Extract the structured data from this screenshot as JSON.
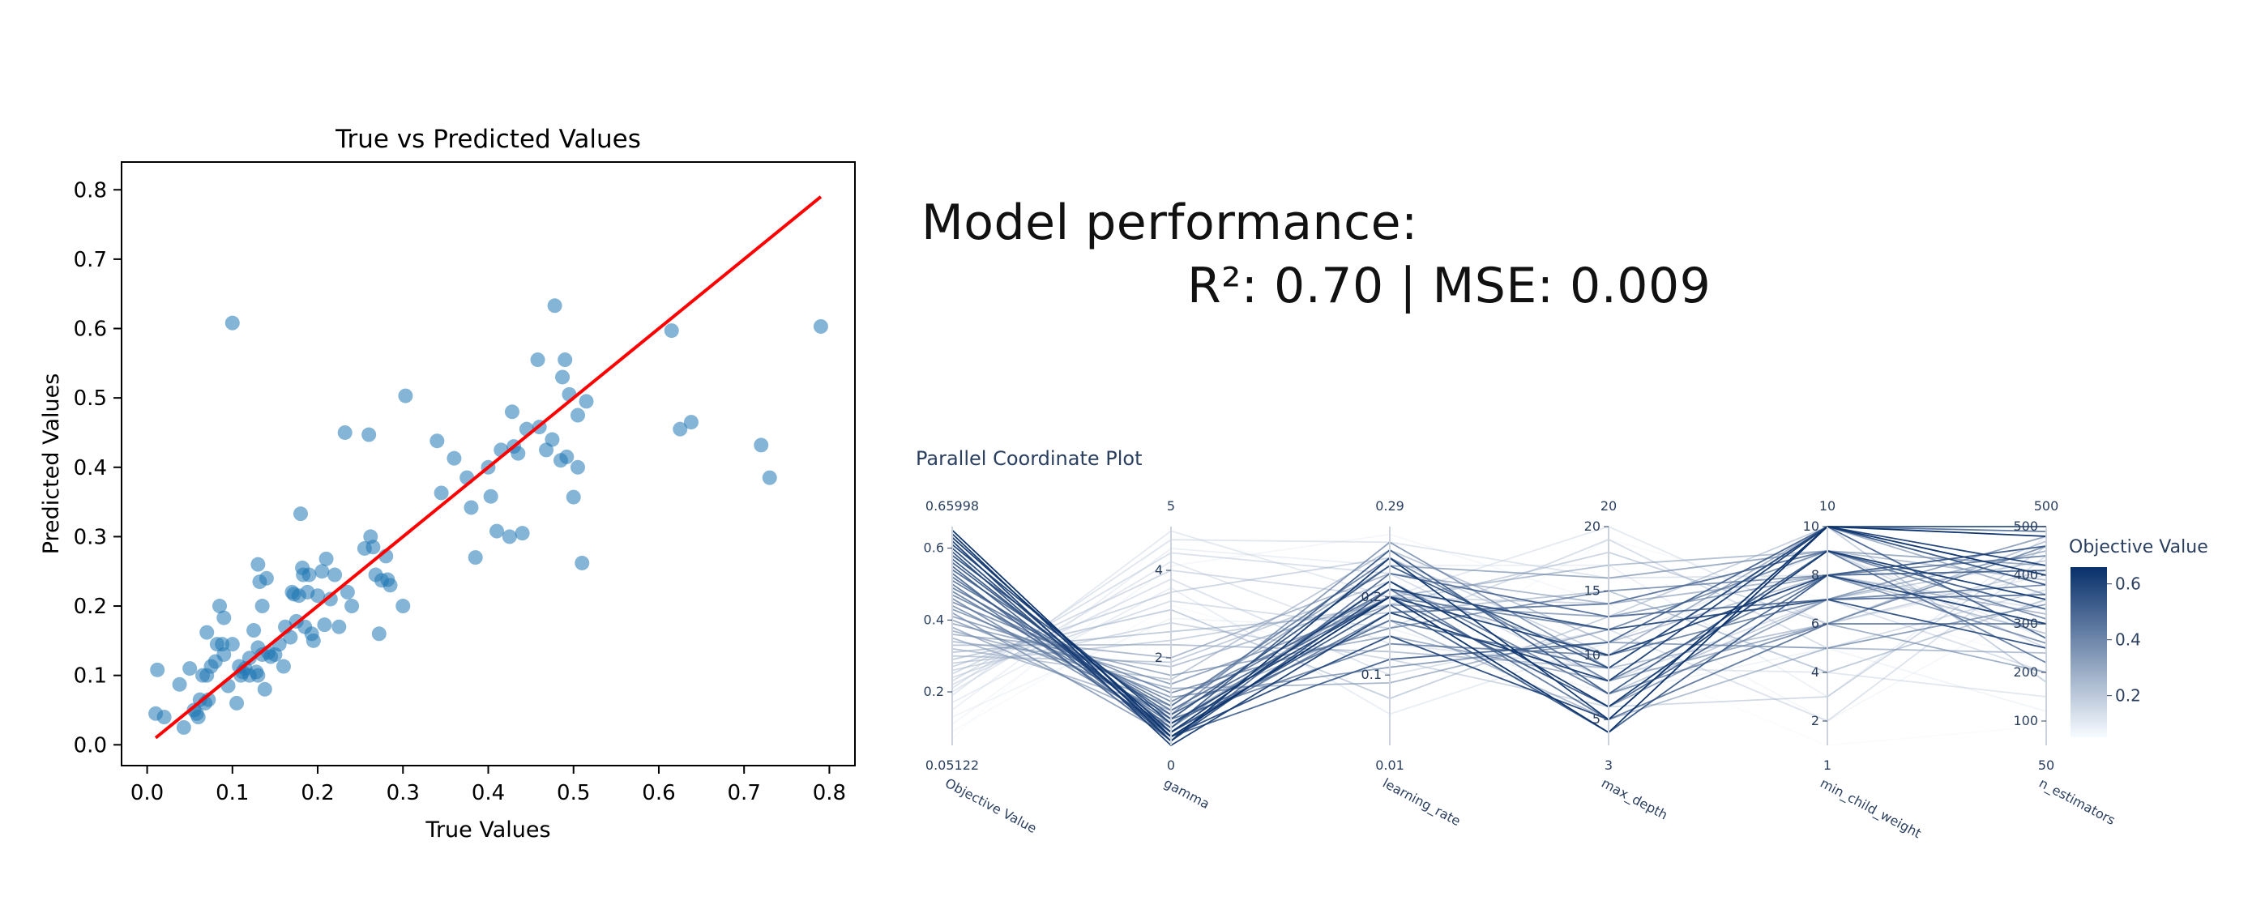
{
  "performance": {
    "title": "Model performance:",
    "metrics": "R²: 0.70 | MSE: 0.009"
  },
  "chart_data": [
    {
      "type": "scatter",
      "title": "True vs Predicted Values",
      "xlabel": "True Values",
      "ylabel": "Predicted Values",
      "xlim": [
        -0.03,
        0.83
      ],
      "ylim": [
        -0.03,
        0.84
      ],
      "xticks": [
        "0.0",
        "0.1",
        "0.2",
        "0.3",
        "0.4",
        "0.5",
        "0.6",
        "0.7",
        "0.8"
      ],
      "yticks": [
        "0.0",
        "0.1",
        "0.2",
        "0.3",
        "0.4",
        "0.5",
        "0.6",
        "0.7",
        "0.8"
      ],
      "point_color": "#1f77b4",
      "line_color": "#ff0000",
      "reference_line": {
        "x": [
          0.01,
          0.79
        ],
        "y": [
          0.01,
          0.79
        ]
      },
      "grid": false,
      "points": [
        [
          0.01,
          0.045
        ],
        [
          0.02,
          0.04
        ],
        [
          0.012,
          0.108
        ],
        [
          0.038,
          0.087
        ],
        [
          0.043,
          0.025
        ],
        [
          0.05,
          0.11
        ],
        [
          0.055,
          0.05
        ],
        [
          0.058,
          0.045
        ],
        [
          0.06,
          0.04
        ],
        [
          0.062,
          0.065
        ],
        [
          0.065,
          0.1
        ],
        [
          0.068,
          0.06
        ],
        [
          0.07,
          0.1
        ],
        [
          0.072,
          0.065
        ],
        [
          0.07,
          0.162
        ],
        [
          0.075,
          0.113
        ],
        [
          0.08,
          0.12
        ],
        [
          0.082,
          0.145
        ],
        [
          0.085,
          0.2
        ],
        [
          0.088,
          0.145
        ],
        [
          0.09,
          0.183
        ],
        [
          0.09,
          0.13
        ],
        [
          0.095,
          0.085
        ],
        [
          0.1,
          0.145
        ],
        [
          0.1,
          0.608
        ],
        [
          0.105,
          0.06
        ],
        [
          0.108,
          0.113
        ],
        [
          0.11,
          0.1
        ],
        [
          0.112,
          0.105
        ],
        [
          0.115,
          0.11
        ],
        [
          0.12,
          0.1
        ],
        [
          0.12,
          0.125
        ],
        [
          0.125,
          0.165
        ],
        [
          0.128,
          0.105
        ],
        [
          0.13,
          0.1
        ],
        [
          0.13,
          0.14
        ],
        [
          0.132,
          0.235
        ],
        [
          0.13,
          0.26
        ],
        [
          0.135,
          0.2
        ],
        [
          0.135,
          0.13
        ],
        [
          0.138,
          0.08
        ],
        [
          0.14,
          0.24
        ],
        [
          0.142,
          0.133
        ],
        [
          0.145,
          0.127
        ],
        [
          0.15,
          0.13
        ],
        [
          0.155,
          0.145
        ],
        [
          0.16,
          0.113
        ],
        [
          0.162,
          0.17
        ],
        [
          0.168,
          0.155
        ],
        [
          0.17,
          0.22
        ],
        [
          0.172,
          0.217
        ],
        [
          0.175,
          0.178
        ],
        [
          0.178,
          0.215
        ],
        [
          0.18,
          0.333
        ],
        [
          0.182,
          0.255
        ],
        [
          0.183,
          0.245
        ],
        [
          0.185,
          0.17
        ],
        [
          0.188,
          0.22
        ],
        [
          0.19,
          0.245
        ],
        [
          0.193,
          0.16
        ],
        [
          0.195,
          0.15
        ],
        [
          0.2,
          0.215
        ],
        [
          0.205,
          0.25
        ],
        [
          0.208,
          0.173
        ],
        [
          0.21,
          0.268
        ],
        [
          0.215,
          0.21
        ],
        [
          0.22,
          0.245
        ],
        [
          0.225,
          0.17
        ],
        [
          0.232,
          0.45
        ],
        [
          0.235,
          0.22
        ],
        [
          0.24,
          0.2
        ],
        [
          0.255,
          0.283
        ],
        [
          0.26,
          0.447
        ],
        [
          0.262,
          0.3
        ],
        [
          0.265,
          0.285
        ],
        [
          0.268,
          0.245
        ],
        [
          0.272,
          0.16
        ],
        [
          0.275,
          0.237
        ],
        [
          0.28,
          0.272
        ],
        [
          0.282,
          0.238
        ],
        [
          0.285,
          0.23
        ],
        [
          0.3,
          0.2
        ],
        [
          0.303,
          0.503
        ],
        [
          0.34,
          0.438
        ],
        [
          0.345,
          0.363
        ],
        [
          0.36,
          0.413
        ],
        [
          0.375,
          0.385
        ],
        [
          0.38,
          0.342
        ],
        [
          0.385,
          0.27
        ],
        [
          0.4,
          0.4
        ],
        [
          0.403,
          0.358
        ],
        [
          0.41,
          0.308
        ],
        [
          0.415,
          0.425
        ],
        [
          0.425,
          0.3
        ],
        [
          0.428,
          0.48
        ],
        [
          0.43,
          0.43
        ],
        [
          0.435,
          0.42
        ],
        [
          0.44,
          0.305
        ],
        [
          0.445,
          0.455
        ],
        [
          0.458,
          0.555
        ],
        [
          0.46,
          0.458
        ],
        [
          0.468,
          0.425
        ],
        [
          0.475,
          0.44
        ],
        [
          0.478,
          0.633
        ],
        [
          0.485,
          0.41
        ],
        [
          0.487,
          0.53
        ],
        [
          0.49,
          0.555
        ],
        [
          0.492,
          0.415
        ],
        [
          0.495,
          0.505
        ],
        [
          0.5,
          0.357
        ],
        [
          0.505,
          0.475
        ],
        [
          0.505,
          0.4
        ],
        [
          0.51,
          0.262
        ],
        [
          0.515,
          0.495
        ],
        [
          0.615,
          0.597
        ],
        [
          0.625,
          0.455
        ],
        [
          0.638,
          0.465
        ],
        [
          0.72,
          0.432
        ],
        [
          0.73,
          0.385
        ],
        [
          0.79,
          0.603
        ]
      ]
    },
    {
      "type": "parallel_coordinates",
      "title": "Parallel Coordinate Plot",
      "colorscale": [
        "#f7fbff",
        "#08306b"
      ],
      "colorbar": {
        "title": "Objective Value",
        "range": [
          0.05122,
          0.65998
        ],
        "ticks": [
          "0.2",
          "0.4",
          "0.6"
        ],
        "tick_values": [
          0.2,
          0.4,
          0.6
        ]
      },
      "axes": [
        {
          "label": "Objective Value",
          "top": "0.65998",
          "bottom": "0.05122",
          "range": [
            0.05122,
            0.65998
          ],
          "ticks": [
            "0.2",
            "0.4",
            "0.6"
          ],
          "tick_values": [
            0.2,
            0.4,
            0.6
          ]
        },
        {
          "label": "gamma",
          "top": "5",
          "bottom": "0",
          "range": [
            0,
            5
          ],
          "ticks": [
            "2",
            "4"
          ],
          "tick_values": [
            2,
            4
          ]
        },
        {
          "label": "learning_rate",
          "top": "0.29",
          "bottom": "0.01",
          "range": [
            0.01,
            0.29
          ],
          "ticks": [
            "0.1",
            "0.2"
          ],
          "tick_values": [
            0.1,
            0.2
          ]
        },
        {
          "label": "max_depth",
          "top": "20",
          "bottom": "3",
          "range": [
            3,
            20
          ],
          "ticks": [
            "5",
            "10",
            "15",
            "20"
          ],
          "tick_values": [
            5,
            10,
            15,
            20
          ]
        },
        {
          "label": "min_child_weight",
          "top": "10",
          "bottom": "1",
          "range": [
            1,
            10
          ],
          "ticks": [
            "2",
            "4",
            "6",
            "8",
            "10"
          ],
          "tick_values": [
            2,
            4,
            6,
            8,
            10
          ]
        },
        {
          "label": "n_estimators",
          "top": "500",
          "bottom": "50",
          "range": [
            50,
            500
          ],
          "ticks": [
            "100",
            "200",
            "300",
            "400",
            "500"
          ],
          "tick_values": [
            100,
            200,
            300,
            400,
            500
          ]
        }
      ],
      "lines": [
        [
          0.65,
          0.2,
          0.2,
          4,
          10,
          480
        ],
        [
          0.64,
          0.1,
          0.25,
          5,
          10,
          400
        ],
        [
          0.63,
          0.3,
          0.22,
          6,
          9,
          350
        ],
        [
          0.62,
          0.0,
          0.18,
          8,
          10,
          420
        ],
        [
          0.61,
          0.5,
          0.2,
          10,
          8,
          300
        ],
        [
          0.6,
          0.2,
          0.15,
          5,
          10,
          500
        ],
        [
          0.59,
          0.1,
          0.21,
          12,
          7,
          250
        ],
        [
          0.58,
          0.6,
          0.24,
          9,
          10,
          380
        ],
        [
          0.57,
          0.3,
          0.19,
          4,
          8,
          460
        ],
        [
          0.56,
          0.4,
          0.26,
          7,
          9,
          330
        ],
        [
          0.55,
          0.2,
          0.12,
          11,
          10,
          270
        ],
        [
          0.54,
          0.7,
          0.2,
          6,
          8,
          410
        ],
        [
          0.53,
          0.1,
          0.23,
          13,
          7,
          360
        ],
        [
          0.52,
          0.5,
          0.17,
          9,
          10,
          490
        ],
        [
          0.51,
          0.8,
          0.21,
          5,
          6,
          300
        ],
        [
          0.5,
          0.3,
          0.18,
          14,
          9,
          220
        ],
        [
          0.49,
          0.9,
          0.25,
          8,
          8,
          440
        ],
        [
          0.48,
          0.6,
          0.14,
          10,
          7,
          380
        ],
        [
          0.47,
          1.0,
          0.2,
          12,
          9,
          310
        ],
        [
          0.46,
          0.4,
          0.22,
          7,
          6,
          460
        ],
        [
          0.45,
          1.2,
          0.16,
          15,
          8,
          260
        ],
        [
          0.44,
          0.7,
          0.27,
          9,
          10,
          400
        ],
        [
          0.43,
          1.1,
          0.11,
          11,
          5,
          340
        ],
        [
          0.42,
          0.2,
          0.2,
          6,
          7,
          480
        ],
        [
          0.41,
          1.4,
          0.19,
          13,
          8,
          300
        ],
        [
          0.4,
          0.9,
          0.24,
          16,
          9,
          420
        ],
        [
          0.39,
          1.6,
          0.15,
          8,
          6,
          200
        ],
        [
          0.38,
          0.5,
          0.21,
          10,
          10,
          360
        ],
        [
          0.37,
          1.3,
          0.09,
          12,
          7,
          450
        ],
        [
          0.36,
          2.0,
          0.23,
          14,
          8,
          320
        ],
        [
          0.35,
          0.8,
          0.17,
          5,
          5,
          240
        ],
        [
          0.34,
          1.8,
          0.2,
          17,
          9,
          390
        ],
        [
          0.33,
          2.3,
          0.13,
          9,
          6,
          470
        ],
        [
          0.32,
          1.5,
          0.26,
          11,
          8,
          280
        ],
        [
          0.31,
          2.6,
          0.18,
          15,
          4,
          350
        ],
        [
          0.3,
          1.9,
          0.22,
          7,
          7,
          430
        ],
        [
          0.29,
          3.1,
          0.07,
          13,
          10,
          180
        ],
        [
          0.28,
          2.4,
          0.19,
          18,
          6,
          410
        ],
        [
          0.27,
          3.5,
          0.25,
          10,
          8,
          300
        ],
        [
          0.26,
          2.8,
          0.12,
          6,
          3,
          460
        ],
        [
          0.25,
          4.0,
          0.2,
          14,
          9,
          250
        ],
        [
          0.24,
          3.3,
          0.16,
          19,
          5,
          370
        ],
        [
          0.23,
          4.4,
          0.23,
          8,
          7,
          200
        ],
        [
          0.22,
          3.8,
          0.1,
          12,
          2,
          440
        ],
        [
          0.21,
          4.7,
          0.27,
          16,
          8,
          330
        ],
        [
          0.2,
          4.2,
          0.14,
          9,
          4,
          150
        ],
        [
          0.19,
          4.9,
          0.2,
          20,
          6,
          400
        ],
        [
          0.17,
          3.6,
          0.05,
          11,
          9,
          270
        ],
        [
          0.15,
          4.5,
          0.24,
          17,
          3,
          480
        ],
        [
          0.13,
          2.9,
          0.16,
          7,
          5,
          120
        ],
        [
          0.11,
          4.1,
          0.28,
          14,
          2,
          350
        ],
        [
          0.09,
          3.2,
          0.11,
          19,
          7,
          220
        ],
        [
          0.07,
          4.8,
          0.22,
          10,
          1,
          90
        ]
      ]
    }
  ]
}
